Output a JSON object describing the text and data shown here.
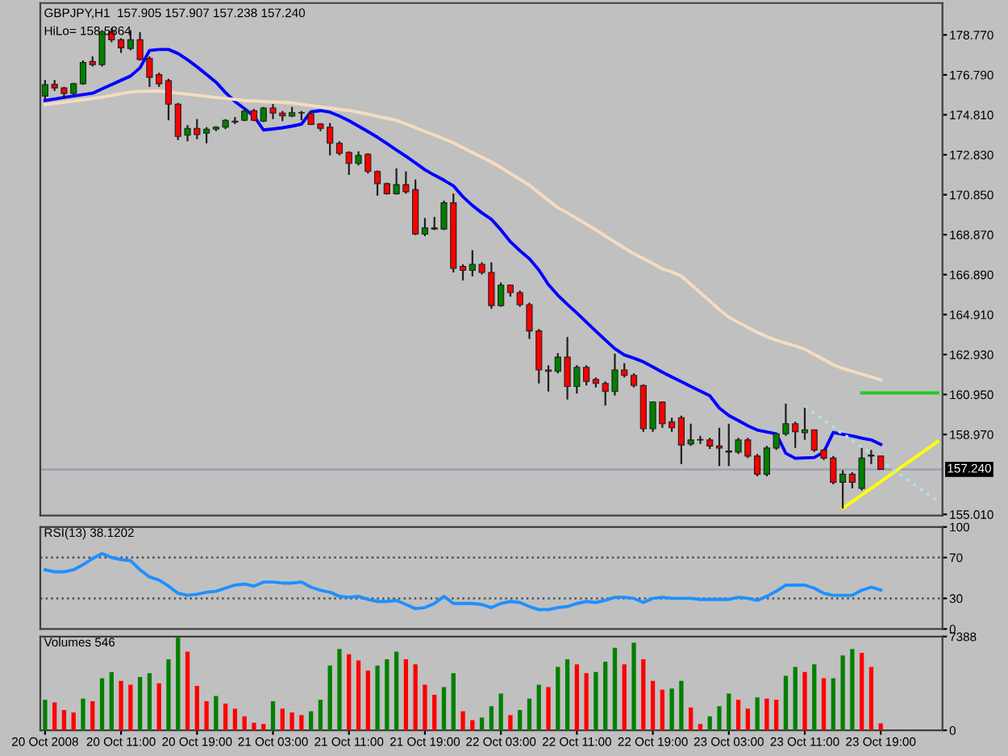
{
  "chart_data": [
    {
      "type": "candlestick",
      "title": "GBPJPY,H1  157.905 157.907 157.238 157.240",
      "annotations": [
        "HiLo= 158.5864"
      ],
      "categories": [
        null,
        null,
        null,
        null,
        null,
        null,
        null,
        null,
        null,
        null,
        null,
        null,
        null,
        null,
        null,
        null,
        null,
        null,
        null,
        null,
        null,
        null,
        null,
        null,
        null,
        null,
        null,
        null,
        null,
        null,
        null,
        null,
        null,
        null,
        null,
        null,
        null,
        null,
        null,
        null,
        null,
        null,
        null,
        null,
        null,
        null,
        null,
        null,
        null,
        null,
        null,
        null,
        null,
        null,
        null,
        null,
        null,
        null,
        null,
        null,
        null,
        null,
        null,
        null,
        null,
        null,
        null,
        null,
        null,
        null,
        null,
        null,
        null,
        null,
        null,
        null,
        null,
        null,
        null,
        null,
        null,
        null,
        null,
        null,
        null,
        null,
        null,
        null,
        null,
        null,
        null,
        null,
        null,
        null,
        null
      ],
      "ohlc": [
        [
          175.74,
          176.54,
          175.58,
          176.3
        ],
        [
          176.32,
          176.54,
          176.0,
          176.14
        ],
        [
          176.14,
          176.2,
          175.6,
          175.87
        ],
        [
          175.87,
          176.4,
          175.8,
          176.35
        ],
        [
          176.35,
          177.5,
          176.3,
          177.4
        ],
        [
          177.45,
          177.7,
          177.2,
          177.3
        ],
        [
          177.3,
          179.0,
          177.2,
          178.93
        ],
        [
          178.93,
          179.1,
          178.4,
          178.53
        ],
        [
          178.53,
          178.6,
          177.87,
          178.13
        ],
        [
          178.1,
          179.0,
          178.0,
          178.53
        ],
        [
          178.53,
          178.9,
          177.5,
          177.55
        ],
        [
          177.6,
          177.7,
          176.2,
          176.67
        ],
        [
          176.8,
          176.9,
          176.2,
          176.35
        ],
        [
          176.5,
          176.6,
          174.54,
          175.34
        ],
        [
          175.34,
          175.4,
          173.56,
          173.74
        ],
        [
          173.8,
          174.3,
          173.5,
          174.14
        ],
        [
          174.14,
          174.6,
          173.6,
          173.83
        ],
        [
          173.9,
          174.2,
          173.4,
          174.1
        ],
        [
          174.1,
          174.25,
          174.0,
          174.2
        ],
        [
          174.2,
          174.6,
          174.1,
          174.54
        ],
        [
          174.45,
          174.7,
          174.35,
          174.5
        ],
        [
          174.54,
          175.1,
          174.5,
          175.0
        ],
        [
          175.02,
          175.1,
          174.5,
          174.54
        ],
        [
          174.5,
          175.2,
          174.45,
          175.15
        ],
        [
          175.15,
          175.35,
          174.6,
          174.9
        ],
        [
          174.9,
          175.0,
          174.5,
          174.76
        ],
        [
          174.75,
          175.2,
          174.7,
          174.92
        ],
        [
          174.92,
          175.0,
          174.55,
          174.9
        ],
        [
          174.86,
          175.0,
          174.3,
          174.33
        ],
        [
          174.36,
          174.4,
          174.0,
          174.14
        ],
        [
          174.2,
          174.4,
          172.8,
          173.4
        ],
        [
          173.4,
          173.5,
          172.8,
          172.9
        ],
        [
          172.95,
          173.0,
          171.83,
          172.4
        ],
        [
          172.4,
          173.0,
          172.3,
          172.8
        ],
        [
          172.86,
          172.9,
          171.9,
          172.0
        ],
        [
          172.0,
          172.05,
          170.8,
          171.4
        ],
        [
          171.4,
          171.45,
          170.85,
          170.9
        ],
        [
          170.9,
          172.15,
          170.85,
          171.35
        ],
        [
          171.35,
          172.0,
          170.9,
          171.0
        ],
        [
          171.1,
          171.6,
          168.85,
          168.9
        ],
        [
          168.9,
          169.7,
          168.8,
          169.2
        ],
        [
          169.2,
          169.75,
          169.1,
          169.15
        ],
        [
          169.15,
          170.55,
          169.1,
          170.45
        ],
        [
          170.45,
          170.9,
          167.0,
          167.2
        ],
        [
          167.3,
          167.4,
          166.6,
          167.1
        ],
        [
          167.1,
          168.1,
          166.8,
          167.4
        ],
        [
          167.4,
          167.5,
          166.9,
          167.0
        ],
        [
          167.0,
          167.5,
          165.2,
          165.36
        ],
        [
          165.36,
          166.5,
          165.3,
          166.37
        ],
        [
          166.37,
          166.4,
          165.8,
          166.0
        ],
        [
          166.0,
          166.1,
          165.3,
          165.4
        ],
        [
          165.4,
          165.5,
          163.7,
          164.1
        ],
        [
          164.1,
          164.2,
          161.5,
          162.17
        ],
        [
          162.17,
          162.4,
          161.1,
          162.1
        ],
        [
          162.1,
          163.0,
          162.0,
          162.8
        ],
        [
          162.8,
          163.8,
          160.7,
          161.35
        ],
        [
          161.35,
          162.4,
          161.0,
          162.3
        ],
        [
          162.3,
          162.4,
          161.4,
          161.6
        ],
        [
          161.7,
          161.8,
          161.3,
          161.5
        ],
        [
          161.5,
          161.6,
          160.4,
          161.1
        ],
        [
          161.1,
          162.97,
          160.9,
          162.17
        ],
        [
          162.17,
          162.5,
          161.8,
          161.9
        ],
        [
          161.9,
          162.0,
          161.3,
          161.4
        ],
        [
          161.4,
          161.45,
          159.1,
          159.25
        ],
        [
          159.25,
          160.6,
          159.1,
          160.58
        ],
        [
          160.58,
          160.6,
          159.3,
          159.5
        ],
        [
          159.6,
          159.8,
          159.1,
          159.3
        ],
        [
          159.8,
          159.9,
          157.5,
          158.45
        ],
        [
          158.5,
          159.5,
          158.4,
          158.7
        ],
        [
          158.7,
          158.9,
          158.5,
          158.72
        ],
        [
          158.7,
          158.8,
          158.25,
          158.4
        ],
        [
          158.4,
          159.3,
          157.4,
          158.3
        ],
        [
          158.15,
          159.5,
          157.4,
          158.1
        ],
        [
          158.1,
          158.8,
          158.0,
          158.7
        ],
        [
          158.7,
          158.8,
          157.8,
          157.9
        ],
        [
          157.9,
          158.0,
          156.9,
          157.0
        ],
        [
          157.0,
          158.4,
          156.9,
          158.3
        ],
        [
          158.3,
          159.0,
          158.2,
          159.0
        ],
        [
          159.0,
          160.5,
          158.9,
          159.5
        ],
        [
          159.5,
          159.6,
          158.3,
          159.1
        ],
        [
          159.05,
          160.3,
          158.7,
          159.2
        ],
        [
          159.2,
          159.2,
          158.1,
          158.2
        ],
        [
          158.2,
          158.25,
          157.7,
          157.8
        ],
        [
          157.8,
          157.9,
          156.5,
          156.6
        ],
        [
          156.6,
          157.2,
          155.3,
          157.0
        ],
        [
          157.0,
          157.1,
          156.3,
          156.6
        ],
        [
          156.3,
          158.3,
          156.2,
          157.8
        ],
        [
          157.9,
          158.2,
          157.5,
          157.95
        ],
        [
          157.905,
          157.907,
          157.238,
          157.24
        ],
        null,
        null,
        null,
        null,
        null,
        null
      ],
      "series": [
        {
          "type": "line",
          "color": "#0000ff",
          "values": [
            175.52,
            175.59,
            175.67,
            175.74,
            175.81,
            175.88,
            176.1,
            176.31,
            176.52,
            176.73,
            177.14,
            178.0,
            178.05,
            178.05,
            177.85,
            177.54,
            177.19,
            176.81,
            176.43,
            175.91,
            175.47,
            175.12,
            174.74,
            174.06,
            174.11,
            174.17,
            174.25,
            174.35,
            174.96,
            175.02,
            174.94,
            174.75,
            174.52,
            174.25,
            173.98,
            173.7,
            173.39,
            173.07,
            172.76,
            172.43,
            172.09,
            171.82,
            171.57,
            171.29,
            170.75,
            170.32,
            169.95,
            169.63,
            169.11,
            168.52,
            168.08,
            167.68,
            167.12,
            166.4,
            165.87,
            165.42,
            164.99,
            164.54,
            164.09,
            163.65,
            163.22,
            162.91,
            162.75,
            162.57,
            162.32,
            162.06,
            161.82,
            161.59,
            161.35,
            161.12,
            160.89,
            160.28,
            159.91,
            159.66,
            159.4,
            159.19,
            159.1,
            159.0,
            158.04,
            157.79,
            157.81,
            157.83,
            158.1,
            159.07,
            158.98,
            158.9,
            158.79,
            158.7,
            158.48,
            null,
            null,
            null,
            null,
            null,
            null
          ]
        },
        {
          "type": "line",
          "color": "#f5dcc0",
          "values": [
            175.31,
            175.37,
            175.43,
            175.49,
            175.55,
            175.62,
            175.68,
            175.77,
            175.86,
            175.94,
            175.97,
            175.98,
            175.99,
            175.94,
            175.88,
            175.83,
            175.78,
            175.72,
            175.67,
            175.62,
            175.57,
            175.52,
            175.5,
            175.47,
            175.45,
            175.43,
            175.4,
            175.33,
            175.27,
            175.2,
            175.15,
            175.08,
            175.03,
            174.93,
            174.84,
            174.73,
            174.64,
            174.54,
            174.36,
            174.17,
            173.99,
            173.81,
            173.62,
            173.42,
            173.18,
            172.94,
            172.71,
            172.47,
            172.2,
            171.91,
            171.62,
            171.32,
            170.95,
            170.57,
            170.21,
            169.95,
            169.67,
            169.39,
            169.11,
            168.8,
            168.5,
            168.21,
            167.93,
            167.69,
            167.44,
            167.18,
            167.03,
            166.82,
            166.41,
            165.99,
            165.58,
            165.16,
            164.78,
            164.53,
            164.28,
            164.03,
            163.82,
            163.64,
            163.49,
            163.36,
            163.19,
            162.94,
            162.69,
            162.43,
            162.24,
            162.1,
            161.96,
            161.82,
            161.68,
            null,
            null,
            null,
            null,
            null,
            null
          ]
        },
        {
          "type": "line",
          "color": "#22cc22",
          "values": [
            null,
            null,
            null,
            null,
            null,
            null,
            null,
            null,
            null,
            null,
            null,
            null,
            null,
            null,
            null,
            null,
            null,
            null,
            null,
            null,
            null,
            null,
            null,
            null,
            null,
            null,
            null,
            null,
            null,
            null,
            null,
            null,
            null,
            null,
            null,
            null,
            null,
            null,
            null,
            null,
            null,
            null,
            null,
            null,
            null,
            null,
            null,
            null,
            null,
            null,
            null,
            null,
            null,
            null,
            null,
            null,
            null,
            null,
            null,
            null,
            null,
            null,
            null,
            null,
            null,
            null,
            null,
            null,
            null,
            null,
            null,
            null,
            null,
            null,
            null,
            null,
            null,
            null,
            null,
            null,
            null,
            null,
            null,
            null,
            null,
            null,
            161.03,
            161.03,
            161.03,
            161.03,
            161.03,
            161.03,
            161.03,
            161.03,
            161.03
          ]
        },
        {
          "type": "line",
          "color": "#ffff00",
          "values": [
            null,
            null,
            null,
            null,
            null,
            null,
            null,
            null,
            null,
            null,
            null,
            null,
            null,
            null,
            null,
            null,
            null,
            null,
            null,
            null,
            null,
            null,
            null,
            null,
            null,
            null,
            null,
            null,
            null,
            null,
            null,
            null,
            null,
            null,
            null,
            null,
            null,
            null,
            null,
            null,
            null,
            null,
            null,
            null,
            null,
            null,
            null,
            null,
            null,
            null,
            null,
            null,
            null,
            null,
            null,
            null,
            null,
            null,
            null,
            null,
            null,
            null,
            null,
            null,
            null,
            null,
            null,
            null,
            null,
            null,
            null,
            null,
            null,
            null,
            null,
            null,
            null,
            null,
            null,
            null,
            null,
            null,
            null,
            null,
            155.31,
            155.64,
            155.97,
            156.3,
            156.63,
            156.97,
            157.3,
            157.63,
            157.96,
            158.29,
            158.62
          ]
        },
        {
          "type": "line",
          "color": "#b0e0e8",
          "line_style": "dotted",
          "values": [
            null,
            null,
            null,
            null,
            null,
            null,
            null,
            null,
            null,
            null,
            null,
            null,
            null,
            null,
            null,
            null,
            null,
            null,
            null,
            null,
            null,
            null,
            null,
            null,
            null,
            null,
            null,
            null,
            null,
            null,
            null,
            null,
            null,
            null,
            null,
            null,
            null,
            null,
            null,
            null,
            null,
            null,
            null,
            null,
            null,
            null,
            null,
            null,
            null,
            null,
            null,
            null,
            null,
            null,
            null,
            null,
            null,
            null,
            null,
            null,
            null,
            null,
            null,
            null,
            null,
            null,
            null,
            null,
            null,
            null,
            null,
            null,
            null,
            null,
            null,
            null,
            null,
            null,
            null,
            null,
            160.34,
            160.01,
            159.67,
            159.34,
            159.0,
            158.67,
            158.34,
            158.0,
            157.67,
            157.33,
            157.0,
            156.67,
            156.33,
            156.0,
            155.66
          ]
        }
      ],
      "ref_lines": [
        {
          "axis": "y",
          "value": 157.24,
          "label": "157.240",
          "color": "#9aa0b4"
        }
      ],
      "ylim": [
        154.95,
        180.35
      ],
      "yticks": [
        {
          "value": 155.01,
          "label": "155.010"
        },
        {
          "value": 158.97,
          "label": "158.970"
        },
        {
          "value": 160.95,
          "label": "160.950"
        },
        {
          "value": 162.93,
          "label": "162.930"
        },
        {
          "value": 164.91,
          "label": "164.910"
        },
        {
          "value": 166.89,
          "label": "166.890"
        },
        {
          "value": 168.87,
          "label": "168.870"
        },
        {
          "value": 170.85,
          "label": "170.850"
        },
        {
          "value": 172.83,
          "label": "172.830"
        },
        {
          "value": 174.81,
          "label": "174.810"
        },
        {
          "value": 176.79,
          "label": "176.790"
        },
        {
          "value": 178.77,
          "label": "178.770"
        }
      ],
      "tick_labels": "y"
    },
    {
      "type": "line",
      "title": "RSI(13) 38.1202",
      "categories": [
        null,
        null,
        null,
        null,
        null,
        null,
        null,
        null,
        null,
        null,
        null,
        null,
        null,
        null,
        null,
        null,
        null,
        null,
        null,
        null,
        null,
        null,
        null,
        null,
        null,
        null,
        null,
        null,
        null,
        null,
        null,
        null,
        null,
        null,
        null,
        null,
        null,
        null,
        null,
        null,
        null,
        null,
        null,
        null,
        null,
        null,
        null,
        null,
        null,
        null,
        null,
        null,
        null,
        null,
        null,
        null,
        null,
        null,
        null,
        null,
        null,
        null,
        null,
        null,
        null,
        null,
        null,
        null,
        null,
        null,
        null,
        null,
        null,
        null,
        null,
        null,
        null,
        null,
        null,
        null,
        null,
        null,
        null,
        null,
        null,
        null,
        null,
        null,
        null,
        null,
        null,
        null,
        null,
        null,
        null
      ],
      "series": [
        {
          "color": "#1e90ff",
          "values": [
            58,
            56,
            56,
            58,
            63,
            69,
            74,
            70,
            68,
            67,
            58,
            51,
            48,
            42,
            35,
            33,
            34,
            36,
            37,
            40,
            43,
            44,
            42,
            46,
            46,
            45,
            45,
            46,
            41,
            38,
            36,
            32,
            31,
            32,
            29,
            27,
            27,
            28,
            24,
            20,
            21,
            25,
            32,
            25,
            25,
            25,
            24,
            21,
            25,
            27,
            26,
            22,
            19,
            19,
            21,
            22,
            25,
            27,
            26,
            28,
            31,
            31,
            30,
            26,
            30,
            31,
            30,
            30,
            30,
            29,
            29,
            29,
            29,
            31,
            30,
            28,
            32,
            37,
            43,
            43,
            43,
            40,
            35,
            33,
            33,
            33,
            38,
            41,
            38.1202,
            null,
            null,
            null,
            null,
            null,
            null
          ]
        }
      ],
      "ref_lines": [
        {
          "axis": "y",
          "value": 70,
          "line_style": "dotted",
          "color": "#505050"
        },
        {
          "axis": "y",
          "value": 30,
          "line_style": "dotted",
          "color": "#505050"
        }
      ],
      "ylim": [
        0,
        100
      ],
      "yticks": [
        0,
        30,
        70,
        100
      ],
      "tick_labels": "y"
    },
    {
      "type": "bar",
      "title": "Volumes 546",
      "categories": [
        "20 Oct 2008",
        null,
        null,
        null,
        null,
        null,
        null,
        null,
        "20 Oct 11:00",
        null,
        null,
        null,
        null,
        null,
        null,
        null,
        "20 Oct 19:00",
        null,
        null,
        null,
        null,
        null,
        null,
        null,
        "21 Oct 03:00",
        null,
        null,
        null,
        null,
        null,
        null,
        null,
        "21 Oct 11:00",
        null,
        null,
        null,
        null,
        null,
        null,
        null,
        "21 Oct 19:00",
        null,
        null,
        null,
        null,
        null,
        null,
        null,
        "22 Oct 03:00",
        null,
        null,
        null,
        null,
        null,
        null,
        null,
        "22 Oct 11:00",
        null,
        null,
        null,
        null,
        null,
        null,
        null,
        "22 Oct 19:00",
        null,
        null,
        null,
        null,
        null,
        null,
        null,
        "23 Oct 03:00",
        null,
        null,
        null,
        null,
        null,
        null,
        null,
        "23 Oct 11:00",
        null,
        null,
        null,
        null,
        null,
        null,
        null,
        "23 Oct 19:00",
        null,
        null,
        null,
        null,
        null,
        null
      ],
      "values": [
        2400,
        2200,
        1600,
        1400,
        2500,
        2300,
        4100,
        4600,
        3900,
        3600,
        4200,
        4500,
        3700,
        5600,
        7300,
        6200,
        3500,
        2300,
        2700,
        2100,
        1700,
        1100,
        600,
        500,
        2300,
        1700,
        1400,
        1200,
        1500,
        2400,
        5100,
        6400,
        6000,
        5500,
        4700,
        5100,
        5600,
        6200,
        5600,
        5200,
        3600,
        2800,
        3400,
        4500,
        1500,
        800,
        1000,
        1900,
        2900,
        1200,
        1600,
        2500,
        3600,
        3400,
        5000,
        5600,
        5200,
        4500,
        4600,
        5400,
        6500,
        5200,
        6900,
        5600,
        3900,
        3200,
        3300,
        3900,
        1800,
        500,
        1100,
        1900,
        2900,
        2400,
        1700,
        2600,
        2500,
        2400,
        4300,
        5000,
        4600,
        5200,
        4100,
        4100,
        5900,
        6400,
        6100,
        5000,
        546,
        null,
        null,
        null,
        null,
        null,
        null
      ],
      "colors": [
        "#008000",
        "#ff0000",
        "#ff0000",
        "#ff0000",
        "#008000",
        "#ff0000",
        "#008000",
        "#008000",
        "#ff0000",
        "#ff0000",
        "#008000",
        "#008000",
        "#ff0000",
        "#008000",
        "#008000",
        "#ff0000",
        "#ff0000",
        "#ff0000",
        "#008000",
        "#ff0000",
        "#ff0000",
        "#ff0000",
        "#ff0000",
        "#ff0000",
        "#008000",
        "#ff0000",
        "#ff0000",
        "#ff0000",
        "#008000",
        "#008000",
        "#008000",
        "#008000",
        "#ff0000",
        "#ff0000",
        "#ff0000",
        "#008000",
        "#008000",
        "#008000",
        "#ff0000",
        "#ff0000",
        "#ff0000",
        "#ff0000",
        "#008000",
        "#008000",
        "#ff0000",
        "#ff0000",
        "#008000",
        "#008000",
        "#008000",
        "#ff0000",
        "#008000",
        "#008000",
        "#008000",
        "#ff0000",
        "#008000",
        "#008000",
        "#ff0000",
        "#ff0000",
        "#008000",
        "#008000",
        "#008000",
        "#ff0000",
        "#008000",
        "#ff0000",
        "#ff0000",
        "#ff0000",
        "#008000",
        "#008000",
        "#ff0000",
        "#ff0000",
        "#008000",
        "#008000",
        "#008000",
        "#ff0000",
        "#ff0000",
        "#008000",
        "#ff0000",
        "#ff0000",
        "#008000",
        "#008000",
        "#ff0000",
        "#008000",
        "#ff0000",
        "#008000",
        "#008000",
        "#008000",
        "#ff0000",
        "#ff0000",
        "#ff0000",
        null,
        null,
        null,
        null,
        null,
        null
      ],
      "ylim": [
        0,
        7388
      ],
      "yticks": [
        0,
        7388
      ]
    }
  ]
}
